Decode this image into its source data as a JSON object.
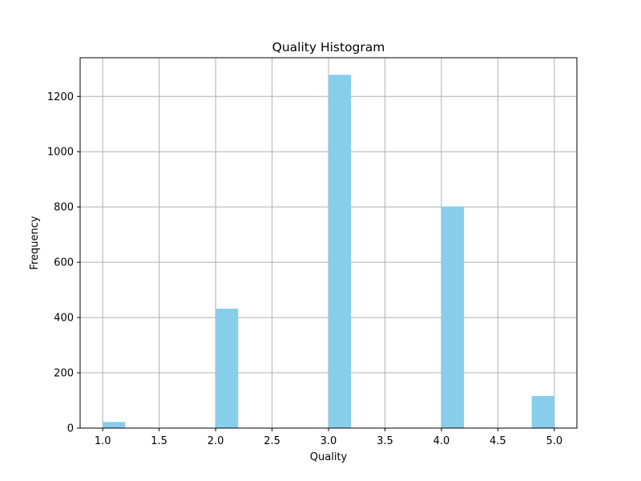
{
  "chart_data": {
    "type": "bar",
    "title": "Quality Histogram",
    "xlabel": "Quality",
    "ylabel": "Frequency",
    "xlim": [
      0.8,
      5.2
    ],
    "ylim": [
      0,
      1340
    ],
    "xticks": [
      "1.0",
      "1.5",
      "2.0",
      "2.5",
      "3.0",
      "3.5",
      "4.0",
      "4.5",
      "5.0"
    ],
    "yticks": [
      "0",
      "200",
      "400",
      "600",
      "800",
      "1000",
      "1200"
    ],
    "grid": true,
    "bins": [
      {
        "x_start": 1.0,
        "x_end": 1.2,
        "value": 22
      },
      {
        "x_start": 2.0,
        "x_end": 2.2,
        "value": 432
      },
      {
        "x_start": 3.0,
        "x_end": 3.2,
        "value": 1278
      },
      {
        "x_start": 4.0,
        "x_end": 4.2,
        "value": 802
      },
      {
        "x_start": 4.8,
        "x_end": 5.0,
        "value": 116
      }
    ],
    "colors": {
      "bar": "#87ceeb",
      "grid": "#b0b0b0",
      "axes": "#000000"
    }
  }
}
